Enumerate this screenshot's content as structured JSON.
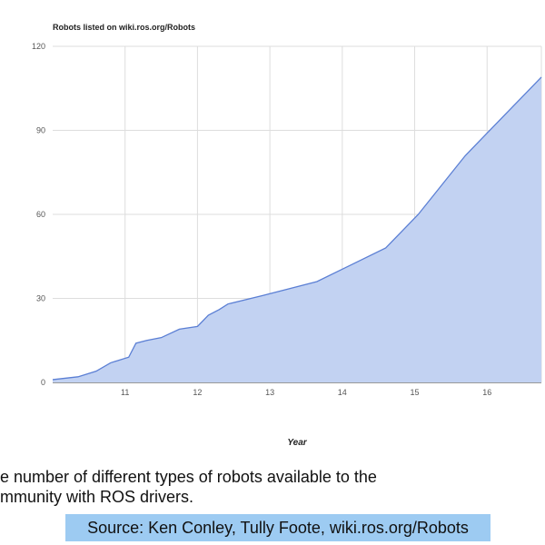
{
  "chart_data": {
    "type": "area",
    "title": "Robots listed on wiki.ros.org/Robots",
    "xlabel": "Year",
    "ylabel": "",
    "xlim": [
      10.0,
      16.75
    ],
    "ylim": [
      0,
      120
    ],
    "xticks": [
      11,
      12,
      13,
      14,
      15,
      16
    ],
    "yticks": [
      0,
      30,
      60,
      90,
      120
    ],
    "grid": true,
    "colors": {
      "fill": "#c2d2f2",
      "line": "#5b7fd4",
      "grid": "#dddddd"
    },
    "series": [
      {
        "x": [
          10.0,
          10.35,
          10.6,
          10.8,
          11.05,
          11.15,
          11.3,
          11.5,
          11.75,
          12.0,
          12.15,
          12.3,
          12.42,
          12.9,
          13.65,
          14.6,
          15.05,
          15.7,
          16.0,
          16.75
        ],
        "y": [
          1,
          2,
          4,
          7,
          9,
          14,
          15,
          16,
          19,
          20,
          24,
          26,
          28,
          31,
          36,
          48,
          60,
          81,
          89,
          109
        ]
      }
    ]
  },
  "caption": {
    "line1": "e number of different types of robots available to the",
    "line2": "mmunity with ROS drivers."
  },
  "source": "Source: Ken Conley, Tully Foote, wiki.ros.org/Robots"
}
